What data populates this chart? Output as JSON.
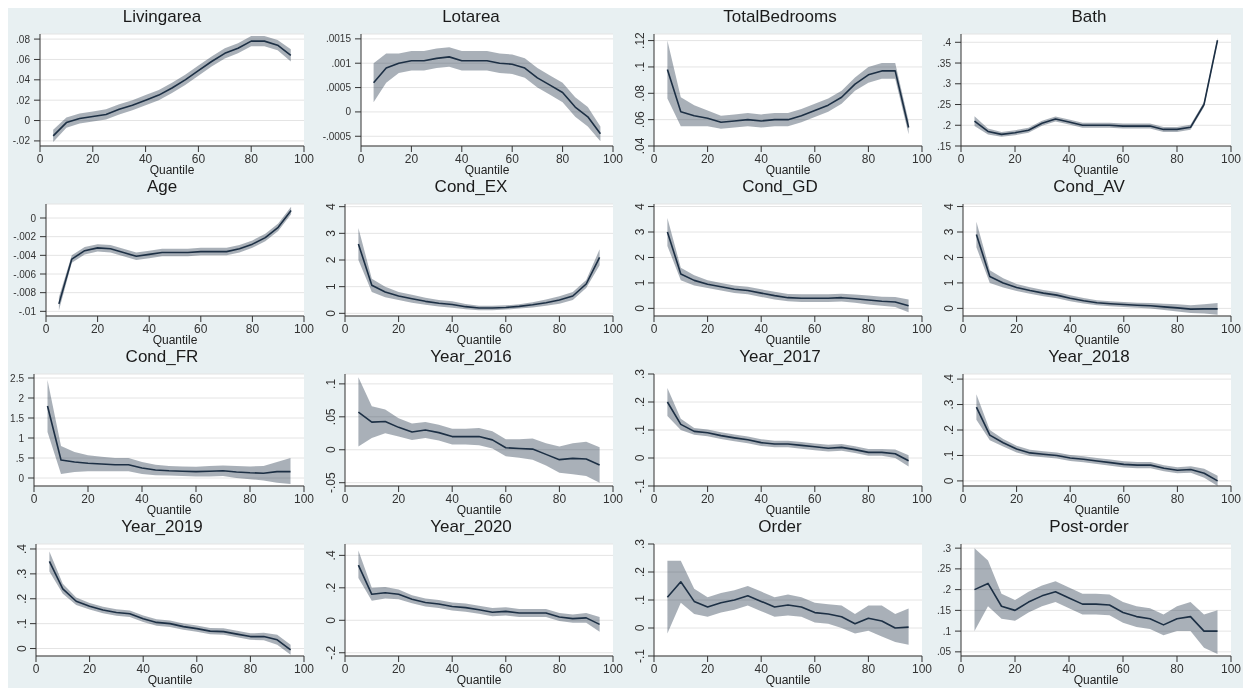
{
  "chart_data": [
    {
      "type": "line",
      "title": "Livingarea",
      "xlabel": "Quantile",
      "x": [
        5,
        10,
        15,
        20,
        25,
        30,
        35,
        40,
        45,
        50,
        55,
        60,
        65,
        70,
        75,
        80,
        85,
        90,
        95
      ],
      "xlim": [
        0,
        100
      ],
      "xticks": [
        0,
        20,
        40,
        60,
        80,
        100
      ],
      "ylim": [
        -0.025,
        0.085
      ],
      "yticks": [
        {
          "value": -0.02,
          "label": "-.02"
        },
        0,
        {
          "value": 0.02,
          "label": ".02"
        },
        {
          "value": 0.04,
          "label": ".04"
        },
        {
          "value": 0.06,
          "label": ".06"
        },
        {
          "value": 0.08,
          "label": ".08"
        }
      ],
      "grid": "y",
      "marker": "none",
      "line_style": "solid",
      "series": [
        {
          "color": "#1c2f44",
          "values": [
            -0.015,
            -0.002,
            0.002,
            0.004,
            0.006,
            0.011,
            0.015,
            0.02,
            0.025,
            0.032,
            0.04,
            0.049,
            0.058,
            0.066,
            0.071,
            0.078,
            0.078,
            0.074,
            0.064
          ],
          "lower": [
            -0.021,
            -0.007,
            -0.003,
            -0.001,
            0.001,
            0.006,
            0.01,
            0.015,
            0.02,
            0.027,
            0.035,
            0.044,
            0.053,
            0.061,
            0.066,
            0.073,
            0.073,
            0.069,
            0.058
          ],
          "upper": [
            -0.009,
            0.003,
            0.007,
            0.009,
            0.011,
            0.016,
            0.02,
            0.025,
            0.03,
            0.037,
            0.045,
            0.054,
            0.063,
            0.071,
            0.076,
            0.083,
            0.083,
            0.079,
            0.07
          ]
        }
      ]
    },
    {
      "type": "line",
      "title": "Lotarea",
      "xlabel": "Quantile",
      "x": [
        5,
        10,
        15,
        20,
        25,
        30,
        35,
        40,
        45,
        50,
        55,
        60,
        65,
        70,
        75,
        80,
        85,
        90,
        95
      ],
      "xlim": [
        0,
        100
      ],
      "xticks": [
        0,
        20,
        40,
        60,
        80,
        100
      ],
      "ylim": [
        -0.0007,
        0.0016
      ],
      "yticks": [
        {
          "value": -0.0005,
          "label": "-.0005"
        },
        0,
        {
          "value": 0.0005,
          "label": ".0005"
        },
        {
          "value": 0.001,
          "label": ".001"
        },
        {
          "value": 0.0015,
          "label": ".0015"
        }
      ],
      "grid": "y",
      "marker": "none",
      "line_style": "solid",
      "series": [
        {
          "color": "#1c2f44",
          "values": [
            0.0006,
            0.0009,
            0.001,
            0.00105,
            0.00105,
            0.0011,
            0.00113,
            0.00105,
            0.00105,
            0.00105,
            0.001,
            0.00098,
            0.0009,
            0.0007,
            0.00055,
            0.0004,
            0.0001,
            -0.0001,
            -0.00045
          ],
          "lower": [
            0.0002,
            0.0006,
            0.0008,
            0.00085,
            0.00085,
            0.0009,
            0.00093,
            0.00085,
            0.00085,
            0.00085,
            0.0008,
            0.00078,
            0.0007,
            0.0005,
            0.00035,
            0.0002,
            -0.0001,
            -0.0003,
            -0.0006
          ],
          "upper": [
            0.001,
            0.0012,
            0.0012,
            0.00125,
            0.00125,
            0.0013,
            0.00133,
            0.00125,
            0.00125,
            0.00125,
            0.0012,
            0.00118,
            0.0011,
            0.0009,
            0.00075,
            0.0006,
            0.0003,
            0.0001,
            -0.0003
          ]
        }
      ]
    },
    {
      "type": "line",
      "title": "TotalBedrooms",
      "xlabel": "Quantile",
      "x": [
        5,
        10,
        15,
        20,
        25,
        30,
        35,
        40,
        45,
        50,
        55,
        60,
        65,
        70,
        75,
        80,
        85,
        90,
        95
      ],
      "xlim": [
        0,
        100
      ],
      "xticks": [
        0,
        20,
        40,
        60,
        80,
        100
      ],
      "ylim": [
        0.04,
        0.125
      ],
      "yticks": [
        {
          "value": 0.04,
          "label": ".04"
        },
        {
          "value": 0.06,
          "label": ".06"
        },
        {
          "value": 0.08,
          "label": ".08"
        },
        {
          "value": 0.1,
          "label": ".1"
        },
        {
          "value": 0.12,
          "label": ".12"
        }
      ],
      "grid": "y",
      "marker": "none",
      "line_style": "solid",
      "series": [
        {
          "color": "#1c2f44",
          "values": [
            0.098,
            0.066,
            0.063,
            0.061,
            0.058,
            0.059,
            0.06,
            0.059,
            0.06,
            0.06,
            0.063,
            0.067,
            0.071,
            0.077,
            0.087,
            0.094,
            0.097,
            0.097,
            0.054
          ],
          "lower": [
            0.076,
            0.055,
            0.055,
            0.055,
            0.053,
            0.054,
            0.055,
            0.054,
            0.055,
            0.055,
            0.058,
            0.062,
            0.066,
            0.072,
            0.082,
            0.088,
            0.091,
            0.091,
            0.049
          ],
          "upper": [
            0.12,
            0.077,
            0.071,
            0.067,
            0.063,
            0.064,
            0.065,
            0.064,
            0.065,
            0.065,
            0.068,
            0.072,
            0.076,
            0.082,
            0.092,
            0.1,
            0.103,
            0.103,
            0.059
          ]
        }
      ]
    },
    {
      "type": "line",
      "title": "Bath",
      "xlabel": "Quantile",
      "x": [
        5,
        10,
        15,
        20,
        25,
        30,
        35,
        40,
        45,
        50,
        55,
        60,
        65,
        70,
        75,
        80,
        85,
        90,
        95
      ],
      "xlim": [
        0,
        100
      ],
      "xticks": [
        0,
        20,
        40,
        60,
        80,
        100
      ],
      "ylim": [
        0.15,
        0.42
      ],
      "yticks": [
        {
          "value": 0.15,
          "label": ".15"
        },
        {
          "value": 0.2,
          "label": ".2"
        },
        {
          "value": 0.25,
          "label": ".25"
        },
        {
          "value": 0.3,
          "label": ".3"
        },
        {
          "value": 0.35,
          "label": ".35"
        },
        {
          "value": 0.4,
          "label": ".4"
        }
      ],
      "grid": "y",
      "marker": "none",
      "line_style": "solid",
      "series": [
        {
          "color": "#1c2f44",
          "values": [
            0.21,
            0.185,
            0.178,
            0.182,
            0.188,
            0.205,
            0.215,
            0.208,
            0.2,
            0.2,
            0.2,
            0.198,
            0.198,
            0.198,
            0.19,
            0.19,
            0.195,
            0.25,
            0.405
          ],
          "lower": [
            0.198,
            0.178,
            0.172,
            0.176,
            0.182,
            0.199,
            0.209,
            0.202,
            0.194,
            0.194,
            0.194,
            0.192,
            0.192,
            0.192,
            0.184,
            0.184,
            0.189,
            0.244,
            0.399
          ],
          "upper": [
            0.222,
            0.192,
            0.184,
            0.188,
            0.194,
            0.211,
            0.221,
            0.214,
            0.206,
            0.206,
            0.206,
            0.204,
            0.204,
            0.204,
            0.196,
            0.196,
            0.201,
            0.256,
            0.411
          ]
        }
      ]
    },
    {
      "type": "line",
      "title": "Age",
      "xlabel": "Quantile",
      "x": [
        5,
        10,
        15,
        20,
        25,
        30,
        35,
        40,
        45,
        50,
        55,
        60,
        65,
        70,
        75,
        80,
        85,
        90,
        95
      ],
      "xlim": [
        0,
        100
      ],
      "xticks": [
        0,
        20,
        40,
        60,
        80,
        100
      ],
      "ylim": [
        -0.0105,
        0.0015
      ],
      "yticks": [
        {
          "value": -0.01,
          "label": "-.01"
        },
        {
          "value": -0.008,
          "label": "-.008"
        },
        {
          "value": -0.006,
          "label": "-.006"
        },
        {
          "value": -0.004,
          "label": "-.004"
        },
        {
          "value": -0.002,
          "label": "-.002"
        },
        0
      ],
      "grid": "y",
      "marker": "none",
      "line_style": "solid",
      "series": [
        {
          "color": "#1c2f44",
          "values": [
            -0.0092,
            -0.0044,
            -0.0035,
            -0.0032,
            -0.0033,
            -0.0037,
            -0.0041,
            -0.0039,
            -0.0037,
            -0.0037,
            -0.0037,
            -0.0036,
            -0.0036,
            -0.0036,
            -0.0033,
            -0.0028,
            -0.0021,
            -0.001,
            0.0008
          ],
          "lower": [
            -0.0099,
            -0.0048,
            -0.0039,
            -0.0036,
            -0.0037,
            -0.0041,
            -0.0045,
            -0.0043,
            -0.0041,
            -0.0041,
            -0.0041,
            -0.004,
            -0.004,
            -0.004,
            -0.0037,
            -0.0032,
            -0.0025,
            -0.0014,
            0.0004
          ],
          "upper": [
            -0.0085,
            -0.004,
            -0.0031,
            -0.0028,
            -0.0029,
            -0.0033,
            -0.0037,
            -0.0035,
            -0.0033,
            -0.0033,
            -0.0033,
            -0.0032,
            -0.0032,
            -0.0032,
            -0.0029,
            -0.0024,
            -0.0017,
            -0.0006,
            0.0012
          ]
        }
      ]
    },
    {
      "type": "line",
      "title": "Cond_EX",
      "xlabel": "Quantile",
      "x": [
        5,
        10,
        15,
        20,
        25,
        30,
        35,
        40,
        45,
        50,
        55,
        60,
        65,
        70,
        75,
        80,
        85,
        90,
        95
      ],
      "xlim": [
        0,
        100
      ],
      "xticks": [
        0,
        20,
        40,
        60,
        80,
        100
      ],
      "ylim": [
        -0.1,
        4.1
      ],
      "yticks": [
        0,
        1,
        2,
        3,
        4
      ],
      "grid": "y",
      "marker": "none",
      "line_style": "solid",
      "series": [
        {
          "color": "#1c2f44",
          "values": [
            2.6,
            1.05,
            0.8,
            0.65,
            0.55,
            0.45,
            0.38,
            0.33,
            0.25,
            0.2,
            0.2,
            0.22,
            0.26,
            0.32,
            0.4,
            0.5,
            0.65,
            1.1,
            2.1
          ],
          "lower": [
            2.0,
            0.8,
            0.6,
            0.5,
            0.4,
            0.32,
            0.26,
            0.21,
            0.15,
            0.12,
            0.12,
            0.14,
            0.18,
            0.22,
            0.28,
            0.36,
            0.5,
            0.95,
            1.8
          ],
          "upper": [
            3.2,
            1.3,
            1.0,
            0.8,
            0.7,
            0.58,
            0.5,
            0.45,
            0.35,
            0.28,
            0.28,
            0.3,
            0.34,
            0.42,
            0.52,
            0.64,
            0.8,
            1.25,
            2.4
          ]
        }
      ]
    },
    {
      "type": "line",
      "title": "Cond_GD",
      "xlabel": "Quantile",
      "x": [
        5,
        10,
        15,
        20,
        25,
        30,
        35,
        40,
        45,
        50,
        55,
        60,
        65,
        70,
        75,
        80,
        85,
        90,
        95
      ],
      "xlim": [
        0,
        100
      ],
      "xticks": [
        0,
        20,
        40,
        60,
        80,
        100
      ],
      "ylim": [
        -0.3,
        4.1
      ],
      "yticks": [
        0,
        1,
        2,
        3,
        4
      ],
      "grid": "y",
      "marker": "none",
      "line_style": "solid",
      "series": [
        {
          "color": "#1c2f44",
          "values": [
            3.0,
            1.35,
            1.1,
            0.95,
            0.85,
            0.75,
            0.7,
            0.6,
            0.5,
            0.42,
            0.4,
            0.4,
            0.4,
            0.42,
            0.38,
            0.33,
            0.28,
            0.25,
            0.1
          ],
          "lower": [
            2.45,
            1.1,
            0.9,
            0.8,
            0.7,
            0.6,
            0.55,
            0.45,
            0.35,
            0.28,
            0.25,
            0.25,
            0.25,
            0.27,
            0.22,
            0.15,
            0.1,
            0.05,
            -0.15
          ],
          "upper": [
            3.55,
            1.6,
            1.3,
            1.1,
            1.0,
            0.9,
            0.85,
            0.75,
            0.65,
            0.56,
            0.55,
            0.55,
            0.55,
            0.57,
            0.54,
            0.51,
            0.46,
            0.45,
            0.35
          ]
        }
      ]
    },
    {
      "type": "line",
      "title": "Cond_AV",
      "xlabel": "Quantile",
      "x": [
        5,
        10,
        15,
        20,
        25,
        30,
        35,
        40,
        45,
        50,
        55,
        60,
        65,
        70,
        75,
        80,
        85,
        90,
        95
      ],
      "xlim": [
        0,
        100
      ],
      "xticks": [
        0,
        20,
        40,
        60,
        80,
        100
      ],
      "ylim": [
        -0.3,
        4.1
      ],
      "yticks": [
        0,
        1,
        2,
        3,
        4
      ],
      "grid": "y",
      "marker": "none",
      "line_style": "solid",
      "series": [
        {
          "color": "#1c2f44",
          "values": [
            2.9,
            1.25,
            1.0,
            0.82,
            0.7,
            0.6,
            0.52,
            0.4,
            0.3,
            0.22,
            0.18,
            0.15,
            0.12,
            0.1,
            0.06,
            0.02,
            -0.03,
            -0.02,
            -0.02
          ],
          "lower": [
            2.4,
            1.0,
            0.82,
            0.68,
            0.57,
            0.48,
            0.4,
            0.28,
            0.19,
            0.12,
            0.08,
            0.05,
            0.02,
            -0.01,
            -0.06,
            -0.12,
            -0.18,
            -0.2,
            -0.25
          ],
          "upper": [
            3.4,
            1.5,
            1.18,
            0.96,
            0.83,
            0.72,
            0.64,
            0.52,
            0.41,
            0.32,
            0.28,
            0.25,
            0.22,
            0.21,
            0.18,
            0.16,
            0.12,
            0.16,
            0.21
          ]
        }
      ]
    },
    {
      "type": "line",
      "title": "Cond_FR",
      "xlabel": "Quantile",
      "x": [
        5,
        10,
        15,
        20,
        25,
        30,
        35,
        40,
        45,
        50,
        55,
        60,
        65,
        70,
        75,
        80,
        85,
        90,
        95
      ],
      "xlim": [
        0,
        100
      ],
      "xticks": [
        0,
        20,
        40,
        60,
        80,
        100
      ],
      "ylim": [
        -0.2,
        2.6
      ],
      "yticks": [
        0,
        {
          "value": 0.5,
          "label": ".5"
        },
        1,
        1.5,
        2,
        2.5
      ],
      "grid": "y",
      "marker": "none",
      "line_style": "solid",
      "series": [
        {
          "color": "#1c2f44",
          "values": [
            1.8,
            0.45,
            0.4,
            0.37,
            0.35,
            0.33,
            0.33,
            0.25,
            0.2,
            0.18,
            0.17,
            0.16,
            0.17,
            0.18,
            0.15,
            0.13,
            0.12,
            0.16,
            0.16
          ],
          "lower": [
            1.15,
            0.1,
            0.15,
            0.17,
            0.17,
            0.17,
            0.17,
            0.1,
            0.07,
            0.06,
            0.05,
            0.04,
            0.04,
            0.05,
            0.0,
            -0.03,
            -0.06,
            -0.12,
            -0.15
          ],
          "upper": [
            2.45,
            0.8,
            0.65,
            0.57,
            0.53,
            0.5,
            0.5,
            0.4,
            0.33,
            0.3,
            0.29,
            0.28,
            0.3,
            0.31,
            0.3,
            0.29,
            0.3,
            0.4,
            0.5
          ]
        }
      ]
    },
    {
      "type": "line",
      "title": "Year_2016",
      "xlabel": "Quantile",
      "x": [
        5,
        10,
        15,
        20,
        25,
        30,
        35,
        40,
        45,
        50,
        55,
        60,
        65,
        70,
        75,
        80,
        85,
        90,
        95
      ],
      "xlim": [
        0,
        100
      ],
      "xticks": [
        0,
        20,
        40,
        60,
        80,
        100
      ],
      "ylim": [
        -0.055,
        0.115
      ],
      "yticks": [
        {
          "value": -0.05,
          "label": "-.05"
        },
        0,
        {
          "value": 0.05,
          "label": ".05"
        },
        {
          "value": 0.1,
          "label": ".1"
        }
      ],
      "grid": "y",
      "marker": "none",
      "line_style": "solid",
      "series": [
        {
          "color": "#1c2f44",
          "values": [
            0.057,
            0.042,
            0.043,
            0.034,
            0.027,
            0.03,
            0.026,
            0.02,
            0.02,
            0.02,
            0.015,
            0.003,
            0.002,
            0.001,
            -0.007,
            -0.015,
            -0.013,
            -0.014,
            -0.023
          ],
          "lower": [
            0.005,
            0.018,
            0.025,
            0.02,
            0.015,
            0.018,
            0.014,
            0.008,
            0.008,
            0.007,
            0.002,
            -0.01,
            -0.012,
            -0.015,
            -0.024,
            -0.035,
            -0.037,
            -0.04,
            -0.05
          ],
          "upper": [
            0.11,
            0.066,
            0.061,
            0.048,
            0.04,
            0.042,
            0.038,
            0.032,
            0.032,
            0.033,
            0.028,
            0.016,
            0.016,
            0.017,
            0.01,
            0.005,
            0.01,
            0.012,
            0.004
          ]
        }
      ]
    },
    {
      "type": "line",
      "title": "Year_2017",
      "xlabel": "Quantile",
      "x": [
        5,
        10,
        15,
        20,
        25,
        30,
        35,
        40,
        45,
        50,
        55,
        60,
        65,
        70,
        75,
        80,
        85,
        90,
        95
      ],
      "xlim": [
        0,
        100
      ],
      "xticks": [
        0,
        20,
        40,
        60,
        80,
        100
      ],
      "ylim": [
        -0.1,
        0.3
      ],
      "yticks": [
        {
          "value": -0.1,
          "label": "-.1"
        },
        0,
        {
          "value": 0.1,
          "label": ".1"
        },
        {
          "value": 0.2,
          "label": ".2"
        },
        {
          "value": 0.3,
          "label": ".3"
        }
      ],
      "grid": "y",
      "marker": "none",
      "line_style": "solid",
      "series": [
        {
          "color": "#1c2f44",
          "values": [
            0.2,
            0.12,
            0.095,
            0.09,
            0.08,
            0.072,
            0.065,
            0.055,
            0.05,
            0.05,
            0.045,
            0.04,
            0.035,
            0.038,
            0.03,
            0.02,
            0.02,
            0.015,
            -0.01
          ],
          "lower": [
            0.15,
            0.1,
            0.083,
            0.078,
            0.068,
            0.06,
            0.053,
            0.043,
            0.038,
            0.038,
            0.033,
            0.028,
            0.023,
            0.026,
            0.018,
            0.008,
            0.008,
            0.0,
            -0.03
          ],
          "upper": [
            0.25,
            0.14,
            0.107,
            0.102,
            0.092,
            0.084,
            0.077,
            0.067,
            0.062,
            0.062,
            0.057,
            0.052,
            0.047,
            0.05,
            0.042,
            0.032,
            0.032,
            0.03,
            0.01
          ]
        }
      ]
    },
    {
      "type": "line",
      "title": "Year_2018",
      "xlabel": "Quantile",
      "x": [
        5,
        10,
        15,
        20,
        25,
        30,
        35,
        40,
        45,
        50,
        55,
        60,
        65,
        70,
        75,
        80,
        85,
        90,
        95
      ],
      "xlim": [
        0,
        100
      ],
      "xticks": [
        0,
        20,
        40,
        60,
        80,
        100
      ],
      "ylim": [
        -0.02,
        0.42
      ],
      "yticks": [
        0,
        {
          "value": 0.1,
          "label": ".1"
        },
        {
          "value": 0.2,
          "label": ".2"
        },
        {
          "value": 0.3,
          "label": ".3"
        },
        {
          "value": 0.4,
          "label": ".4"
        }
      ],
      "grid": "y",
      "marker": "none",
      "line_style": "solid",
      "series": [
        {
          "color": "#1c2f44",
          "values": [
            0.29,
            0.18,
            0.15,
            0.125,
            0.11,
            0.105,
            0.1,
            0.09,
            0.085,
            0.078,
            0.072,
            0.065,
            0.062,
            0.062,
            0.05,
            0.042,
            0.045,
            0.03,
            0.0
          ],
          "lower": [
            0.24,
            0.16,
            0.135,
            0.112,
            0.098,
            0.093,
            0.088,
            0.078,
            0.073,
            0.066,
            0.06,
            0.053,
            0.05,
            0.05,
            0.038,
            0.03,
            0.032,
            0.012,
            -0.02
          ],
          "upper": [
            0.34,
            0.2,
            0.165,
            0.138,
            0.122,
            0.117,
            0.112,
            0.102,
            0.097,
            0.09,
            0.084,
            0.077,
            0.074,
            0.074,
            0.062,
            0.054,
            0.058,
            0.048,
            0.02
          ]
        }
      ]
    },
    {
      "type": "line",
      "title": "Year_2019",
      "xlabel": "Quantile",
      "x": [
        5,
        10,
        15,
        20,
        25,
        30,
        35,
        40,
        45,
        50,
        55,
        60,
        65,
        70,
        75,
        80,
        85,
        90,
        95
      ],
      "xlim": [
        0,
        100
      ],
      "xticks": [
        0,
        20,
        40,
        60,
        80,
        100
      ],
      "ylim": [
        -0.03,
        0.42
      ],
      "yticks": [
        0,
        {
          "value": 0.1,
          "label": ".1"
        },
        {
          "value": 0.2,
          "label": ".2"
        },
        {
          "value": 0.3,
          "label": ".3"
        },
        {
          "value": 0.4,
          "label": ".4"
        }
      ],
      "grid": "y",
      "marker": "none",
      "line_style": "solid",
      "series": [
        {
          "color": "#1c2f44",
          "values": [
            0.35,
            0.24,
            0.19,
            0.17,
            0.155,
            0.145,
            0.14,
            0.12,
            0.105,
            0.1,
            0.088,
            0.08,
            0.07,
            0.068,
            0.058,
            0.048,
            0.048,
            0.035,
            -0.005
          ],
          "lower": [
            0.31,
            0.22,
            0.175,
            0.157,
            0.142,
            0.132,
            0.127,
            0.107,
            0.092,
            0.087,
            0.075,
            0.067,
            0.057,
            0.055,
            0.045,
            0.035,
            0.033,
            0.015,
            -0.025
          ],
          "upper": [
            0.39,
            0.26,
            0.205,
            0.183,
            0.168,
            0.158,
            0.153,
            0.133,
            0.118,
            0.113,
            0.101,
            0.093,
            0.083,
            0.081,
            0.071,
            0.061,
            0.063,
            0.055,
            0.015
          ]
        }
      ]
    },
    {
      "type": "line",
      "title": "Year_2020",
      "xlabel": "Quantile",
      "x": [
        5,
        10,
        15,
        20,
        25,
        30,
        35,
        40,
        45,
        50,
        55,
        60,
        65,
        70,
        75,
        80,
        85,
        90,
        95
      ],
      "xlim": [
        0,
        100
      ],
      "xticks": [
        0,
        20,
        40,
        60,
        80,
        100
      ],
      "ylim": [
        -0.22,
        0.47
      ],
      "yticks": [
        {
          "value": -0.2,
          "label": "-.2"
        },
        0,
        {
          "value": 0.2,
          "label": ".2"
        },
        {
          "value": 0.4,
          "label": ".4"
        }
      ],
      "grid": "y",
      "marker": "none",
      "line_style": "solid",
      "series": [
        {
          "color": "#1c2f44",
          "values": [
            0.34,
            0.16,
            0.17,
            0.16,
            0.13,
            0.11,
            0.1,
            0.085,
            0.078,
            0.065,
            0.05,
            0.055,
            0.045,
            0.045,
            0.045,
            0.02,
            0.01,
            0.015,
            -0.025
          ],
          "lower": [
            0.26,
            0.12,
            0.135,
            0.13,
            0.105,
            0.085,
            0.075,
            0.06,
            0.053,
            0.04,
            0.025,
            0.03,
            0.02,
            0.02,
            0.02,
            -0.005,
            -0.015,
            -0.015,
            -0.07
          ],
          "upper": [
            0.43,
            0.2,
            0.205,
            0.19,
            0.155,
            0.135,
            0.125,
            0.11,
            0.103,
            0.09,
            0.075,
            0.08,
            0.07,
            0.07,
            0.07,
            0.045,
            0.035,
            0.045,
            0.02
          ]
        }
      ]
    },
    {
      "type": "line",
      "title": "Order",
      "xlabel": "Quantile",
      "x": [
        5,
        10,
        15,
        20,
        25,
        30,
        35,
        40,
        45,
        50,
        55,
        60,
        65,
        70,
        75,
        80,
        85,
        90,
        95
      ],
      "xlim": [
        0,
        100
      ],
      "xticks": [
        0,
        20,
        40,
        60,
        80,
        100
      ],
      "ylim": [
        -0.1,
        0.3
      ],
      "yticks": [
        {
          "value": -0.1,
          "label": "-.1"
        },
        0,
        {
          "value": 0.1,
          "label": ".1"
        },
        {
          "value": 0.2,
          "label": ".2"
        },
        {
          "value": 0.3,
          "label": ".3"
        }
      ],
      "grid": "y",
      "marker": "none",
      "line_style": "solid",
      "series": [
        {
          "color": "#1c2f44",
          "values": [
            0.11,
            0.165,
            0.095,
            0.075,
            0.09,
            0.1,
            0.115,
            0.095,
            0.075,
            0.082,
            0.075,
            0.055,
            0.05,
            0.04,
            0.015,
            0.035,
            0.025,
            0.0,
            0.003
          ],
          "lower": [
            -0.02,
            0.09,
            0.05,
            0.04,
            0.055,
            0.065,
            0.08,
            0.06,
            0.04,
            0.045,
            0.04,
            0.02,
            0.015,
            0.0,
            -0.02,
            -0.01,
            -0.03,
            -0.05,
            -0.06
          ],
          "upper": [
            0.24,
            0.24,
            0.14,
            0.11,
            0.125,
            0.135,
            0.15,
            0.13,
            0.11,
            0.12,
            0.11,
            0.09,
            0.085,
            0.08,
            0.05,
            0.08,
            0.08,
            0.05,
            0.07
          ]
        }
      ]
    },
    {
      "type": "line",
      "title": "Post-order",
      "xlabel": "Quantile",
      "x": [
        5,
        10,
        15,
        20,
        25,
        30,
        35,
        40,
        45,
        50,
        55,
        60,
        65,
        70,
        75,
        80,
        85,
        90,
        95
      ],
      "xlim": [
        0,
        100
      ],
      "xticks": [
        0,
        20,
        40,
        60,
        80,
        100
      ],
      "ylim": [
        0.04,
        0.31
      ],
      "yticks": [
        {
          "value": 0.05,
          "label": ".05"
        },
        {
          "value": 0.1,
          "label": ".1"
        },
        {
          "value": 0.15,
          "label": ".15"
        },
        {
          "value": 0.2,
          "label": ".2"
        },
        {
          "value": 0.25,
          "label": ".25"
        },
        {
          "value": 0.3,
          "label": ".3"
        }
      ],
      "grid": "y",
      "marker": "none",
      "line_style": "solid",
      "series": [
        {
          "color": "#1c2f44",
          "values": [
            0.2,
            0.215,
            0.16,
            0.15,
            0.17,
            0.185,
            0.195,
            0.18,
            0.165,
            0.165,
            0.163,
            0.145,
            0.135,
            0.13,
            0.115,
            0.13,
            0.135,
            0.1,
            0.1
          ],
          "lower": [
            0.1,
            0.16,
            0.13,
            0.125,
            0.145,
            0.16,
            0.17,
            0.155,
            0.14,
            0.14,
            0.138,
            0.12,
            0.11,
            0.105,
            0.09,
            0.1,
            0.1,
            0.06,
            0.045
          ],
          "upper": [
            0.3,
            0.27,
            0.19,
            0.175,
            0.195,
            0.21,
            0.22,
            0.205,
            0.19,
            0.19,
            0.188,
            0.17,
            0.16,
            0.155,
            0.14,
            0.16,
            0.17,
            0.14,
            0.15
          ]
        }
      ]
    }
  ]
}
